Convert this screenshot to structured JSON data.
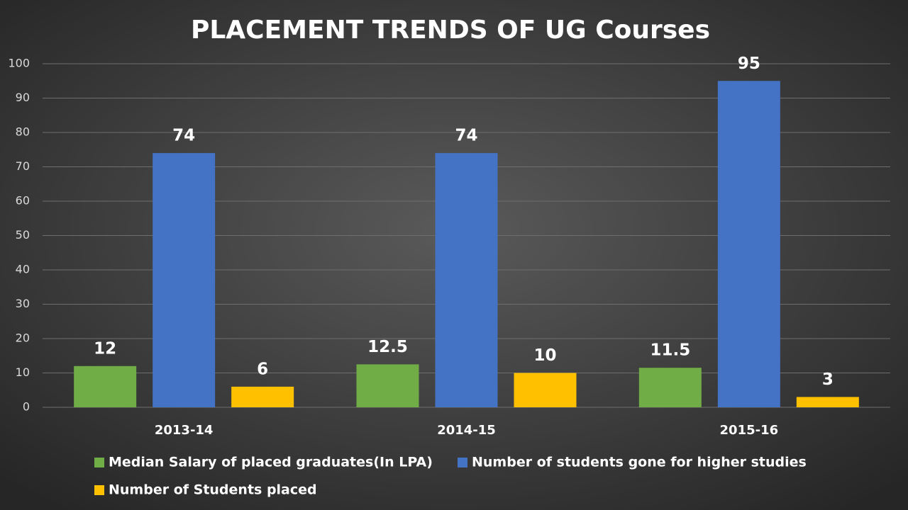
{
  "chart_data": {
    "type": "bar",
    "title": "PLACEMENT TRENDS OF UG Courses",
    "categories": [
      "2013-14",
      "2014-15",
      "2015-16"
    ],
    "series": [
      {
        "name": "Median Salary of placed graduates(In LPA)",
        "color": "#70ad47",
        "values": [
          12,
          12.5,
          11.5
        ]
      },
      {
        "name": "Number of students gone for higher studies",
        "color": "#4472c4",
        "values": [
          74,
          74,
          95
        ]
      },
      {
        "name": "Number of Students placed",
        "color": "#ffc000",
        "values": [
          6,
          10,
          3
        ]
      }
    ],
    "ylim": [
      0,
      100
    ],
    "yticks": [
      0,
      10,
      20,
      30,
      40,
      50,
      60,
      70,
      80,
      90,
      100
    ],
    "grid": true
  }
}
